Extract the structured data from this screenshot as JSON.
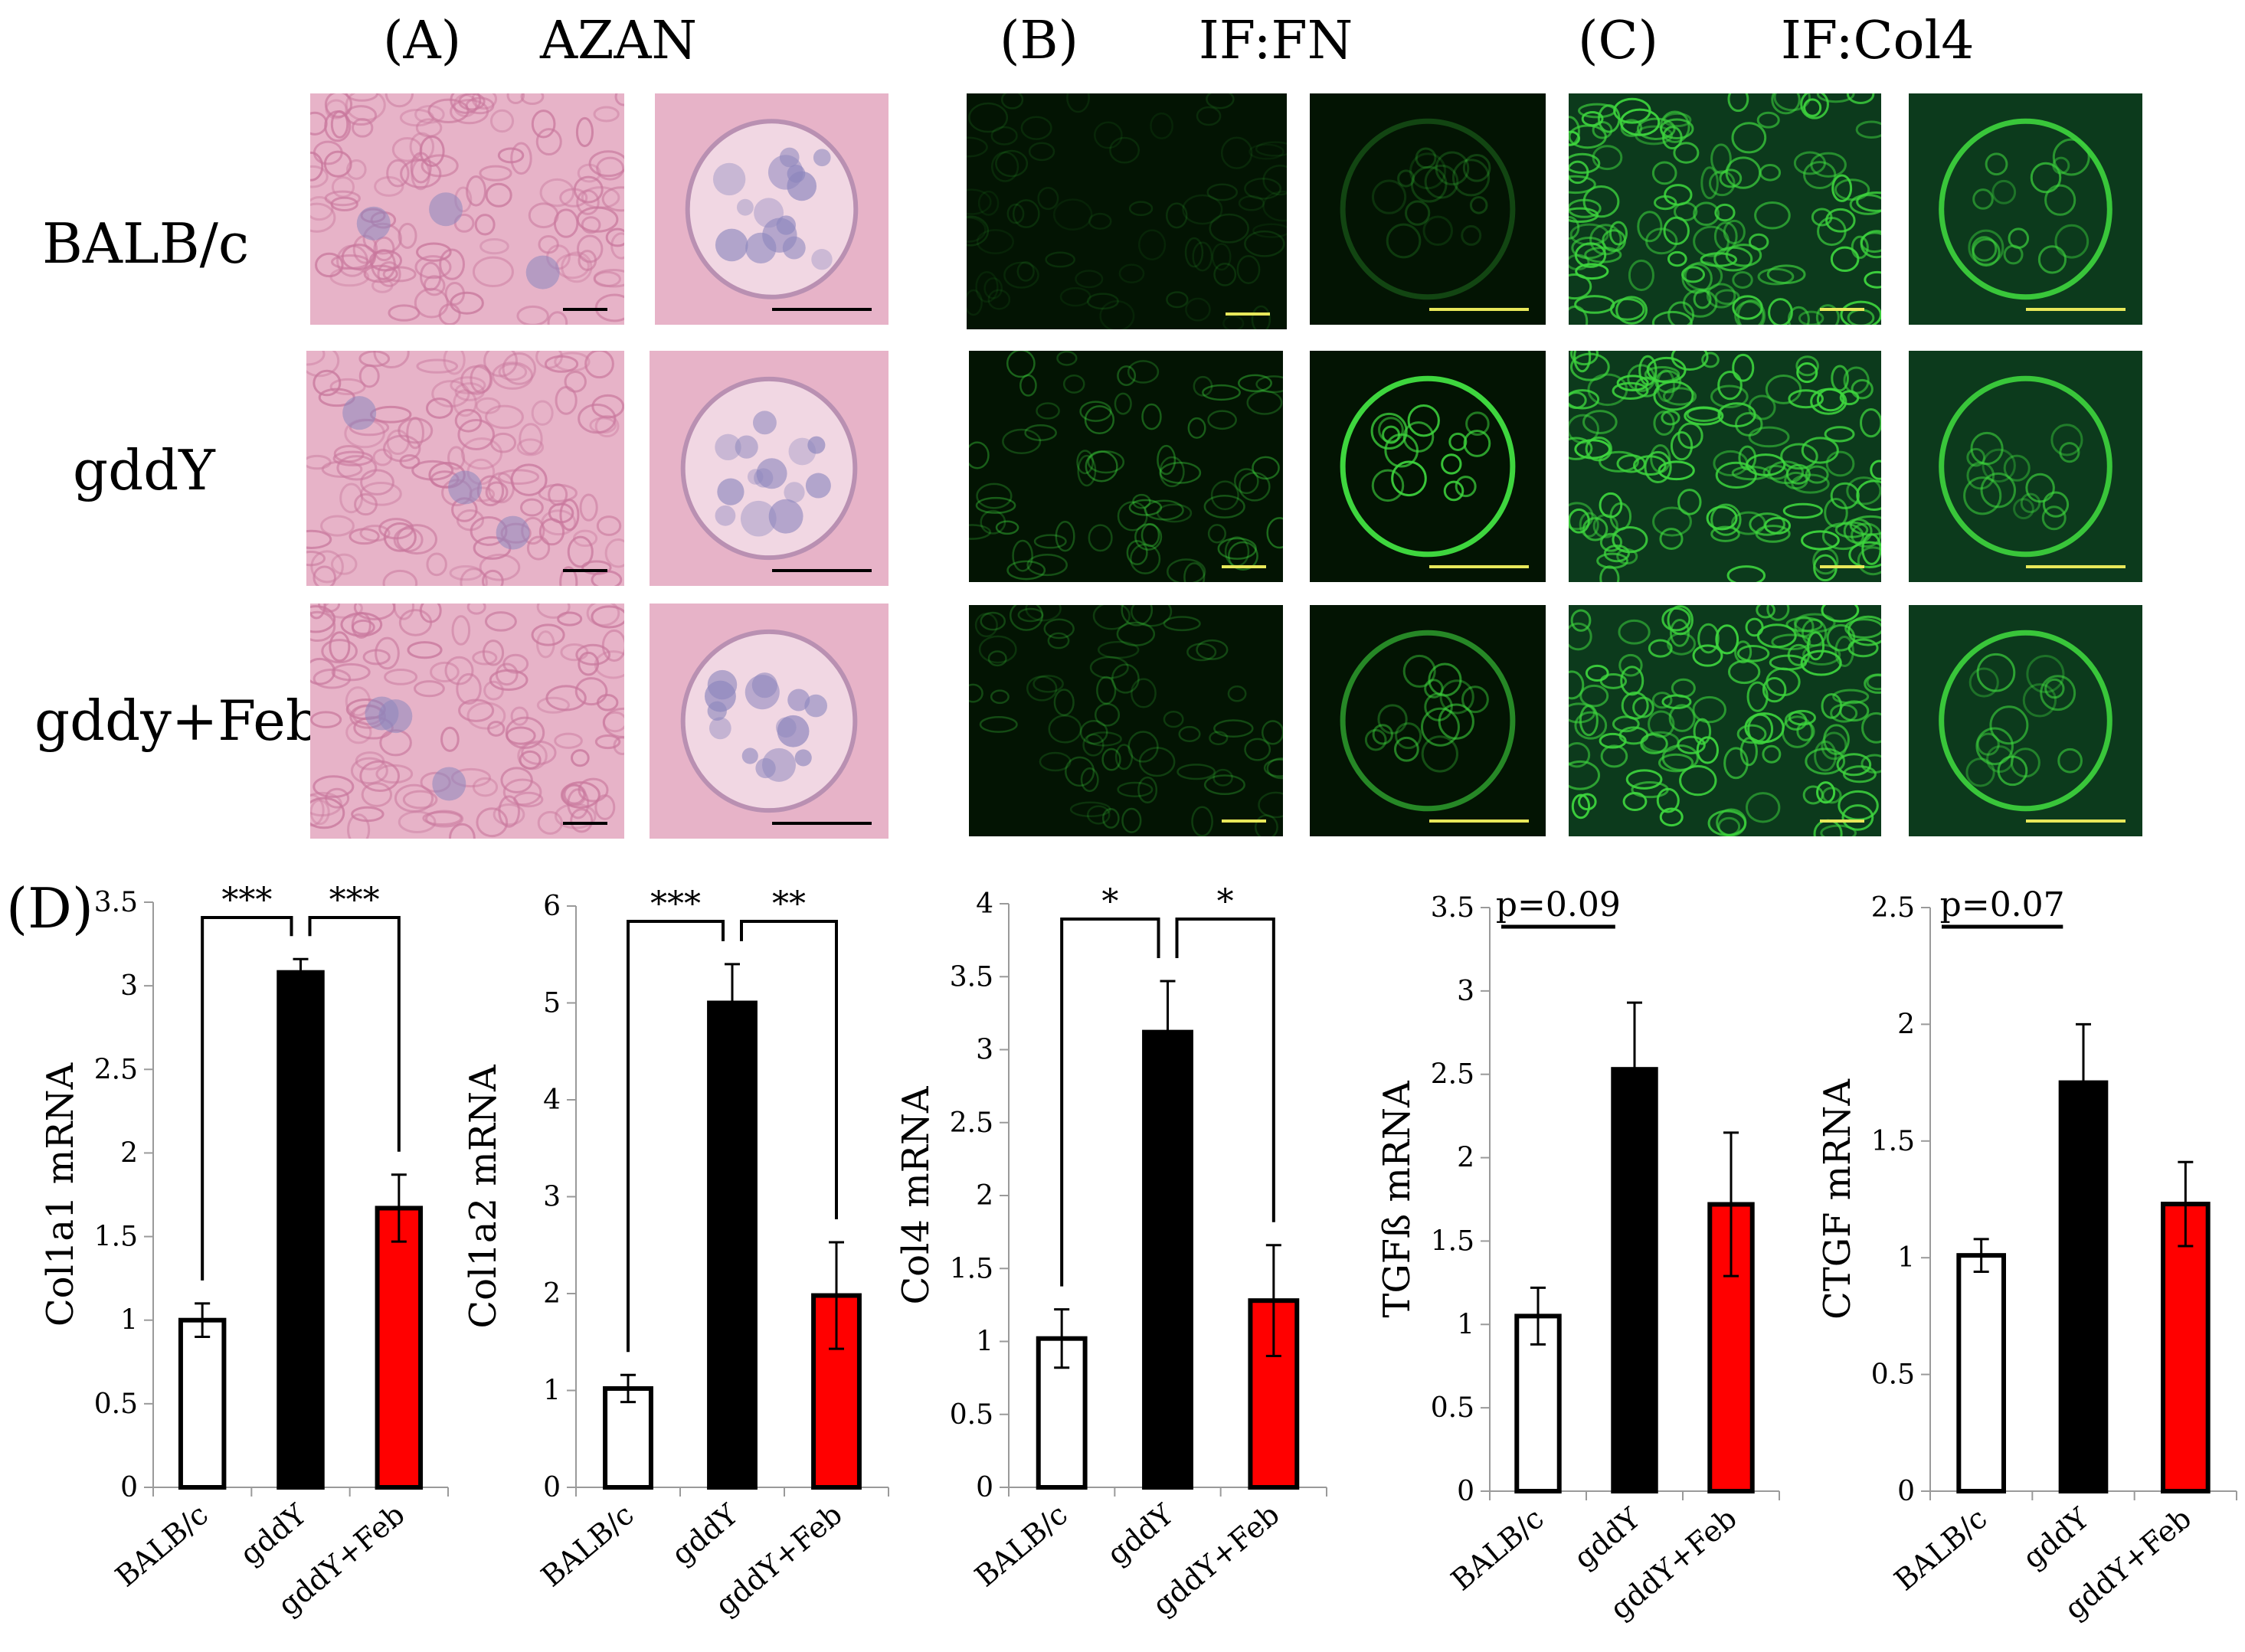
{
  "figure": {
    "panel_labels": {
      "a": "(A)",
      "b": "(B)",
      "c": "(C)",
      "d": "(D)"
    },
    "stain_titles": {
      "a": "AZAN",
      "b": "IF:FN",
      "c": "IF:Col4"
    },
    "row_labels": [
      "BALB/c",
      "gddY",
      "gddy+Feb"
    ],
    "colors": {
      "azan_bg": "#e7b3c8",
      "azan_tubule": "#c9789d",
      "azan_glom": "#8c86bd",
      "if_bg": "#031403",
      "if_signal": "#3ed63e",
      "col4_bg": "#0c3a1c",
      "scalebar_azan": "#000000",
      "scalebar_if": "#e8e85a"
    }
  },
  "chart_data": [
    {
      "type": "bar",
      "categories": [
        "BALB/c",
        "gddY",
        "gddY+Feb"
      ],
      "values": [
        1.0,
        3.08,
        1.67
      ],
      "errors": [
        0.1,
        0.08,
        0.2
      ],
      "ylabel": "Col1a1 mRNA",
      "ylim": [
        0,
        3.5
      ],
      "yticks": [
        "0",
        "0.5",
        "1",
        "1.5",
        "2",
        "2.5",
        "3",
        "3.5"
      ],
      "bar_colors": [
        "#ffffff",
        "#000000",
        "#ff0000"
      ],
      "significance": [
        "***",
        "***"
      ]
    },
    {
      "type": "bar",
      "categories": [
        "BALB/c",
        "gddY",
        "gddY+Feb"
      ],
      "values": [
        1.02,
        5.0,
        1.98
      ],
      "errors": [
        0.14,
        0.4,
        0.55
      ],
      "ylabel": "Col1a2  mRNA",
      "ylim": [
        0,
        6
      ],
      "yticks": [
        "0",
        "1",
        "2",
        "3",
        "4",
        "5",
        "6"
      ],
      "bar_colors": [
        "#ffffff",
        "#000000",
        "#ff0000"
      ],
      "significance": [
        "***",
        "**"
      ]
    },
    {
      "type": "bar",
      "categories": [
        "BALB/c",
        "gddY",
        "gddY+Feb"
      ],
      "values": [
        1.02,
        3.12,
        1.28
      ],
      "errors": [
        0.2,
        0.35,
        0.38
      ],
      "ylabel": "Col4  mRNA",
      "ylim": [
        0,
        4
      ],
      "yticks": [
        "0",
        "0.5",
        "1",
        "1.5",
        "2",
        "2.5",
        "3",
        "3.5",
        "4"
      ],
      "bar_colors": [
        "#ffffff",
        "#000000",
        "#ff0000"
      ],
      "significance": [
        "*",
        "*"
      ]
    },
    {
      "type": "bar",
      "categories": [
        "BALB/c",
        "gddY",
        "gddY+Feb"
      ],
      "values": [
        1.05,
        2.53,
        1.72
      ],
      "errors": [
        0.17,
        0.4,
        0.43
      ],
      "ylabel": "TGFß mRNA",
      "ylim": [
        0,
        3.5
      ],
      "yticks": [
        "0",
        "0.5",
        "1",
        "1.5",
        "2",
        "2.5",
        "3",
        "3.5"
      ],
      "bar_colors": [
        "#ffffff",
        "#000000",
        "#ff0000"
      ],
      "pvalue": "p=0.09"
    },
    {
      "type": "bar",
      "categories": [
        "BALB/c",
        "gddY",
        "gddY+Feb"
      ],
      "values": [
        1.01,
        1.75,
        1.23
      ],
      "errors": [
        0.07,
        0.25,
        0.18
      ],
      "ylabel": "CTGF  mRNA",
      "ylim": [
        0,
        2.5
      ],
      "yticks": [
        "0",
        "0.5",
        "1",
        "1.5",
        "2",
        "2.5"
      ],
      "bar_colors": [
        "#ffffff",
        "#000000",
        "#ff0000"
      ],
      "pvalue": "p=0.07"
    }
  ]
}
